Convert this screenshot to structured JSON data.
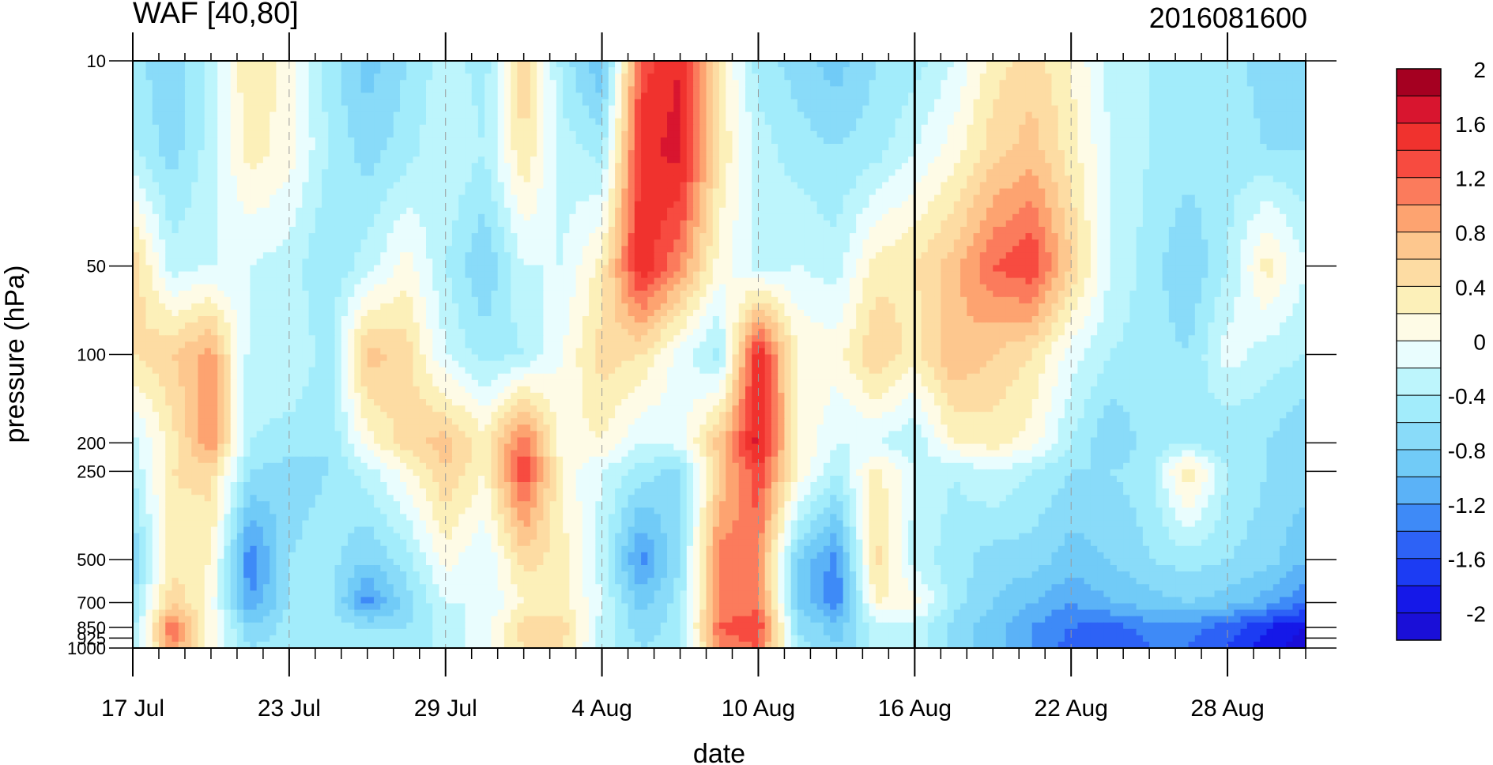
{
  "header": {
    "left_title": "WAF [40,80]",
    "right_title": "2016081600"
  },
  "chart_data": {
    "type": "heatmap",
    "title": "WAF [40,80]",
    "subtitle": "2016081600",
    "xlabel": "date",
    "ylabel": "pressure (hPa)",
    "x_tick_labels": [
      "17 Jul",
      "23 Jul",
      "29 Jul",
      "4 Aug",
      "10 Aug",
      "16 Aug",
      "22 Aug",
      "28 Aug"
    ],
    "x_tick_days": [
      0,
      6,
      12,
      18,
      24,
      30,
      36,
      42
    ],
    "x_range_days": [
      0,
      45
    ],
    "y_tick_labels": [
      "10",
      "50",
      "100",
      "200",
      "250",
      "500",
      "700",
      "850",
      "925",
      "1000"
    ],
    "y_tick_values": [
      10,
      50,
      100,
      200,
      250,
      500,
      700,
      850,
      925,
      1000
    ],
    "y_range": [
      1000,
      10
    ],
    "y_scale": "log",
    "vertical_marker_label": "16 Aug",
    "colorbar": {
      "labels": [
        "2",
        "1.6",
        "1.2",
        "0.8",
        "0.4",
        "0",
        "-0.4",
        "-0.8",
        "-1.2",
        "-1.6",
        "-2"
      ],
      "label_values": [
        2,
        1.6,
        1.2,
        0.8,
        0.4,
        0,
        -0.4,
        -0.8,
        -1.2,
        -1.6,
        -2
      ],
      "colors": [
        "#a50021",
        "#d8152f",
        "#f0322e",
        "#f74b40",
        "#fb7b5c",
        "#fda370",
        "#fdc78e",
        "#fddca3",
        "#fcf0b9",
        "#fefbe6",
        "#e9fdfe",
        "#bdf5fc",
        "#a2ecfb",
        "#89dbf9",
        "#71cbf7",
        "#5bb2f7",
        "#3e8af7",
        "#2d62f6",
        "#1c3cf3",
        "#1518e8",
        "#1a0fd7"
      ]
    },
    "level_nodes_days": [
      0,
      1.5,
      3,
      4.5,
      6,
      7.5,
      9,
      10.5,
      12,
      13.5,
      15,
      16.5,
      18,
      19.5,
      21,
      22.5,
      24,
      25.5,
      27,
      28.5,
      30,
      31.5,
      33,
      34.5,
      36,
      37.5,
      39,
      40.5,
      42,
      43.5,
      45
    ],
    "level_nodes_hPa": [
      10,
      20,
      50,
      100,
      200,
      250,
      500,
      700,
      850,
      1000
    ],
    "field_values": [
      [
        -0.5,
        -0.8,
        -0.3,
        0.4,
        0.1,
        -0.5,
        -0.9,
        -0.6,
        -0.3,
        -0.5,
        0.6,
        -0.5,
        -1.0,
        1.3,
        1.6,
        0.3,
        -0.5,
        -0.7,
        -0.9,
        -0.6,
        -0.5,
        -0.2,
        0.3,
        0.5,
        0.2,
        -0.3,
        -0.4,
        -0.4,
        -0.5,
        -0.7,
        -0.8
      ],
      [
        -0.4,
        -0.7,
        -0.3,
        0.3,
        0.1,
        -0.4,
        -0.7,
        -0.5,
        -0.2,
        -0.4,
        0.4,
        -0.3,
        -0.5,
        1.5,
        1.7,
        0.4,
        -0.3,
        -0.5,
        -0.6,
        -0.5,
        -0.2,
        0.1,
        0.5,
        0.7,
        0.3,
        -0.2,
        -0.4,
        -0.5,
        -0.5,
        -0.6,
        -0.6
      ],
      [
        0.6,
        -0.3,
        -0.2,
        -0.2,
        -0.3,
        -0.6,
        -0.3,
        0.1,
        -0.4,
        -0.8,
        -0.2,
        -0.2,
        0.3,
        1.6,
        1.0,
        0.1,
        -0.3,
        -0.2,
        -0.3,
        0.3,
        0.4,
        0.7,
        1.2,
        1.4,
        0.6,
        -0.2,
        -0.5,
        -0.8,
        -0.4,
        0.3,
        -0.2
      ],
      [
        0.4,
        0.6,
        0.9,
        -0.3,
        -0.2,
        -0.5,
        0.7,
        0.5,
        -0.2,
        -0.5,
        -0.4,
        0.0,
        0.5,
        0.4,
        -0.1,
        -0.5,
        1.6,
        0.2,
        0.1,
        0.6,
        0.3,
        0.8,
        0.6,
        0.4,
        -0.1,
        -0.4,
        -0.5,
        -0.6,
        -0.1,
        -0.3,
        -0.4
      ],
      [
        -0.3,
        0.3,
        1.0,
        -0.4,
        -0.5,
        -0.6,
        0.1,
        0.5,
        0.7,
        0.3,
        1.2,
        0.1,
        0.2,
        -0.2,
        -0.1,
        0.7,
        1.7,
        0.2,
        -0.2,
        -0.2,
        -0.4,
        0.2,
        0.3,
        0.1,
        -0.4,
        -0.8,
        -0.5,
        -0.4,
        -0.6,
        -0.6,
        -0.8
      ],
      [
        -0.4,
        0.4,
        0.5,
        -0.6,
        -0.7,
        -0.6,
        -0.3,
        0.1,
        0.6,
        0.2,
        1.4,
        0.1,
        -0.2,
        -0.5,
        -0.7,
        0.6,
        1.4,
        0.2,
        -0.4,
        0.3,
        -0.2,
        -0.4,
        -0.2,
        -0.4,
        -0.6,
        -0.6,
        -0.5,
        0.4,
        -0.4,
        -0.6,
        -0.7
      ],
      [
        -0.8,
        0.3,
        0.2,
        -1.4,
        -0.6,
        -0.5,
        -0.8,
        -0.5,
        0.1,
        -0.2,
        0.5,
        0.3,
        -0.3,
        -1.3,
        -0.6,
        1.1,
        1.0,
        -0.8,
        -1.3,
        0.5,
        -0.3,
        -0.5,
        -0.7,
        -0.7,
        -0.9,
        -0.8,
        -0.6,
        -0.5,
        -0.6,
        -0.7,
        -1.0
      ],
      [
        -0.6,
        0.6,
        0.1,
        -1.2,
        -0.6,
        -0.5,
        -1.3,
        -0.7,
        -0.2,
        -0.2,
        0.2,
        0.3,
        -0.2,
        -0.9,
        -0.5,
        1.0,
        1.1,
        -0.8,
        -1.4,
        0.2,
        0.1,
        -0.5,
        -0.8,
        -1.0,
        -1.2,
        -1.0,
        -0.9,
        -0.8,
        -0.9,
        -1.1,
        -1.4
      ],
      [
        -0.5,
        1.2,
        0.1,
        -0.8,
        -0.5,
        -0.5,
        -0.6,
        -0.6,
        -0.3,
        -0.1,
        0.5,
        0.5,
        -0.3,
        -0.7,
        -0.5,
        1.2,
        1.4,
        -0.6,
        -0.9,
        -0.3,
        -0.3,
        -0.7,
        -0.9,
        -1.2,
        -1.4,
        -1.5,
        -1.3,
        -1.3,
        -1.5,
        -1.8,
        -2.0
      ],
      [
        -0.5,
        1.0,
        0.1,
        -0.6,
        -0.5,
        -0.5,
        -0.6,
        -0.6,
        -0.3,
        -0.1,
        0.4,
        0.4,
        -0.3,
        -0.6,
        -0.5,
        1.0,
        1.2,
        -0.5,
        -0.8,
        -0.3,
        -0.3,
        -0.7,
        -0.9,
        -1.2,
        -1.5,
        -1.6,
        -1.4,
        -1.4,
        -1.6,
        -1.9,
        -2.1
      ]
    ]
  }
}
